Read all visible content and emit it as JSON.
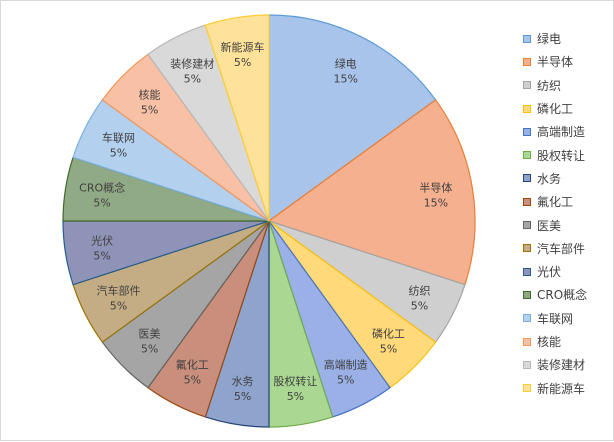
{
  "chart_data": {
    "type": "pie",
    "title": "",
    "categories": [
      "绿电",
      "半导体",
      "纺织",
      "磷化工",
      "高端制造",
      "股权转让",
      "水务",
      "氟化工",
      "医美",
      "汽车部件",
      "光伏",
      "CRO概念",
      "车联网",
      "核能",
      "装修建材",
      "新能源车"
    ],
    "values": [
      15,
      15,
      5,
      5,
      5,
      5,
      5,
      5,
      5,
      5,
      5,
      5,
      5,
      5,
      5,
      5
    ],
    "value_labels": [
      "15%",
      "15%",
      "5%",
      "5%",
      "5%",
      "5%",
      "5%",
      "5%",
      "5%",
      "5%",
      "5%",
      "5%",
      "5%",
      "5%",
      "5%",
      "5%"
    ],
    "colors": [
      "#a9c4eb",
      "#f5b090",
      "#cfcfcf",
      "#ffd97a",
      "#9ab0e6",
      "#aad893",
      "#8ea4cd",
      "#c98e7c",
      "#a5a5a5",
      "#c4ad84",
      "#8f93b7",
      "#90aa86",
      "#b3d0ef",
      "#f8c0a5",
      "#d9d9d9",
      "#ffe299"
    ],
    "stroke_colors": [
      "#5b9bd5",
      "#ed7d31",
      "#a5a5a5",
      "#ffc000",
      "#4472c4",
      "#70ad47",
      "#264478",
      "#9e480e",
      "#636363",
      "#997300",
      "#255e91",
      "#43682b",
      "#7cafdd",
      "#f1975a",
      "#b7b7b7",
      "#ffcd33"
    ],
    "legend_position": "right",
    "start_angle_deg": 0,
    "direction": "clockwise"
  }
}
